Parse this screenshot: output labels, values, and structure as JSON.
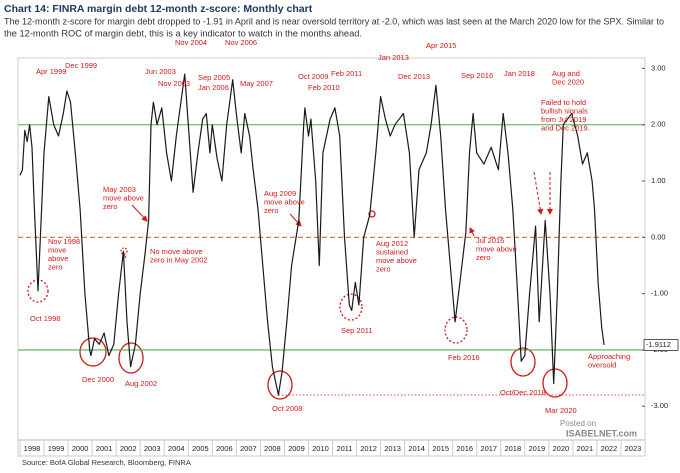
{
  "chart_data": {
    "type": "line",
    "title": "Chart 14: FINRA margin debt 12-month z-score: Monthly chart",
    "subtitle": [
      "The 12-month z-score for margin debt dropped to -1.91 in April and is near oversold territory at -2.0, which was last seen at the March 2020 low for the SPX. Similar to",
      "the 12-month ROC of margin debt, this is a key indicator to watch in the months ahead."
    ],
    "source": "Source: BofA Global Research, Bloomberg, FINRA",
    "watermark": [
      "Posted on",
      "ISABELNET.com"
    ],
    "color": "#1a1a1a",
    "x": [
      1998.0,
      1998.1,
      1998.2,
      1998.3,
      1998.4,
      1998.5,
      1998.6,
      1998.75,
      1998.9,
      1999.0,
      1999.2,
      1999.4,
      1999.6,
      1999.8,
      1999.95,
      2000.1,
      2000.3,
      2000.5,
      2000.7,
      2000.9,
      2000.95,
      2001.1,
      2001.3,
      2001.5,
      2001.7,
      2001.9,
      2002.1,
      2002.3,
      2002.45,
      2002.6,
      2002.8,
      2003.0,
      2003.2,
      2003.35,
      2003.45,
      2003.55,
      2003.7,
      2003.9,
      2004.1,
      2004.3,
      2004.5,
      2004.85,
      2005.0,
      2005.2,
      2005.4,
      2005.6,
      2005.75,
      2005.9,
      2006.0,
      2006.2,
      2006.4,
      2006.6,
      2006.85,
      2007.0,
      2007.2,
      2007.35,
      2007.55,
      2007.7,
      2007.9,
      2008.1,
      2008.3,
      2008.5,
      2008.75,
      2008.9,
      2009.1,
      2009.3,
      2009.6,
      2009.8,
      2009.85,
      2010.0,
      2010.1,
      2010.3,
      2010.45,
      2010.6,
      2010.9,
      2011.1,
      2011.3,
      2011.5,
      2011.7,
      2011.8,
      2011.95,
      2012.1,
      2012.3,
      2012.55,
      2012.8,
      2013.0,
      2013.2,
      2013.4,
      2013.6,
      2013.95,
      2014.2,
      2014.4,
      2014.6,
      2014.9,
      2015.1,
      2015.3,
      2015.5,
      2015.7,
      2015.9,
      2016.1,
      2016.3,
      2016.55,
      2016.7,
      2016.85,
      2017.0,
      2017.3,
      2017.6,
      2017.9,
      2018.1,
      2018.3,
      2018.5,
      2018.7,
      2018.85,
      2019.0,
      2019.2,
      2019.45,
      2019.6,
      2019.85,
      2020.05,
      2020.2,
      2020.35,
      2020.5,
      2020.6,
      2020.95,
      2021.2,
      2021.4,
      2021.6,
      2021.8,
      2021.9,
      2022.05,
      2022.2,
      2022.3
    ],
    "values": [
      1.1,
      1.2,
      1.9,
      1.7,
      2.0,
      1.6,
      0.5,
      -0.95,
      0.5,
      1.5,
      2.5,
      2.0,
      1.8,
      2.2,
      2.6,
      2.4,
      1.5,
      0.5,
      -1.0,
      -2.0,
      -2.1,
      -1.8,
      -1.9,
      -1.7,
      -2.1,
      -1.9,
      -1.0,
      -0.25,
      -1.5,
      -2.3,
      -1.9,
      -1.0,
      -0.3,
      0.3,
      2.0,
      2.4,
      2.0,
      2.3,
      1.5,
      1.0,
      1.8,
      2.9,
      2.0,
      0.8,
      1.5,
      2.1,
      2.2,
      1.5,
      2.0,
      1.4,
      1.0,
      2.0,
      2.8,
      2.2,
      1.5,
      2.2,
      1.8,
      1.2,
      0.5,
      -0.5,
      -1.5,
      -2.3,
      -2.8,
      -2.4,
      -1.5,
      -0.5,
      0.3,
      2.0,
      2.3,
      1.8,
      2.1,
      1.0,
      -0.5,
      1.5,
      2.1,
      2.3,
      1.8,
      0.0,
      -1.2,
      -1.3,
      -0.8,
      -1.2,
      0.0,
      0.4,
      1.5,
      2.5,
      2.1,
      1.8,
      2.0,
      2.2,
      1.5,
      0.0,
      1.2,
      1.5,
      2.0,
      2.7,
      1.8,
      0.5,
      -0.5,
      -1.5,
      -0.8,
      0.1,
      1.5,
      2.2,
      1.5,
      1.3,
      1.6,
      1.2,
      2.2,
      1.5,
      0.5,
      -1.0,
      -2.2,
      -2.1,
      -1.0,
      0.2,
      -1.5,
      0.3,
      -1.0,
      -2.6,
      -1.0,
      1.0,
      2.0,
      2.2,
      1.8,
      1.3,
      1.5,
      1.0,
      0.5,
      -0.8,
      -1.6,
      -1.9112
    ],
    "end_label": "-1.9112",
    "xlim": [
      1998,
      2024
    ],
    "xticks": [
      1998,
      1999,
      2000,
      2001,
      2002,
      2003,
      2004,
      2005,
      2006,
      2007,
      2008,
      2009,
      2010,
      2011,
      2012,
      2013,
      2014,
      2015,
      2016,
      2017,
      2018,
      2019,
      2020,
      2021,
      2022,
      2023
    ],
    "ylim": [
      -3.6,
      3.15
    ],
    "yticks": [
      {
        "value": 3,
        "label": "3.00"
      },
      {
        "value": 2,
        "label": "2.00"
      },
      {
        "value": 1,
        "label": "1.00"
      },
      {
        "value": 0,
        "label": "0.00"
      },
      {
        "value": -1,
        "label": "-1.00"
      },
      {
        "value": -2,
        "label": "-2.00"
      },
      {
        "value": -3,
        "label": "-3.00"
      }
    ],
    "hlines": [
      {
        "value": 2,
        "color": "#4caf50",
        "style": "solid"
      },
      {
        "value": -2,
        "color": "#4caf50",
        "style": "solid"
      },
      {
        "value": 0,
        "color": "#e06040",
        "style": "dashed"
      },
      {
        "value": -2.8,
        "from": 2008.75,
        "color": "#e06040",
        "style": "dotted"
      }
    ],
    "annotation_color": "#d01818",
    "annotations": [
      {
        "lines": [
          "Apr 1999"
        ]
      },
      {
        "lines": [
          "Dec 1999"
        ]
      },
      {
        "lines": [
          "Jun 2003"
        ]
      },
      {
        "lines": [
          "Nov 2003"
        ]
      },
      {
        "lines": [
          "Nov 2004"
        ]
      },
      {
        "lines": [
          "Sep 2005"
        ]
      },
      {
        "lines": [
          "Jan 2006"
        ]
      },
      {
        "lines": [
          "Nov 2006"
        ]
      },
      {
        "lines": [
          "May 2007"
        ]
      },
      {
        "lines": [
          "Oct 2009"
        ]
      },
      {
        "lines": [
          "Feb 2010"
        ]
      },
      {
        "lines": [
          "Feb 2011"
        ]
      },
      {
        "lines": [
          "Jan 2013"
        ]
      },
      {
        "lines": [
          "Dec 2013"
        ]
      },
      {
        "lines": [
          "Apr 2015"
        ]
      },
      {
        "lines": [
          "Sep 2016"
        ]
      },
      {
        "lines": [
          "Jan 2018"
        ]
      },
      {
        "lines": [
          "Aug and",
          "Dec 2020"
        ]
      },
      {
        "lines": [
          "Failed to hold",
          "bullish signals",
          "from Jul 2019",
          "and Dec 2019."
        ]
      },
      {
        "lines": [
          "Nov 1998",
          "move",
          "above",
          "zero"
        ]
      },
      {
        "lines": [
          "Oct 1998"
        ]
      },
      {
        "lines": [
          "May 2003",
          "move above",
          "zero"
        ]
      },
      {
        "lines": [
          "No move above",
          "zero in May 2002"
        ]
      },
      {
        "lines": [
          "Dec 2000"
        ]
      },
      {
        "lines": [
          "Aug 2002"
        ]
      },
      {
        "lines": [
          "Aug 2009",
          "move above",
          "zero"
        ]
      },
      {
        "lines": [
          "Oct 2008"
        ]
      },
      {
        "lines": [
          "Aug 2012",
          "sustained",
          "move above",
          "zero"
        ]
      },
      {
        "lines": [
          "Sep 2011"
        ]
      },
      {
        "lines": [
          "Jul 2016",
          "move above",
          "zero"
        ]
      },
      {
        "lines": [
          "Feb 2016"
        ]
      },
      {
        "lines": [
          "Oct/Dec 2018"
        ]
      },
      {
        "lines": [
          "Mar 2020"
        ]
      },
      {
        "lines": [
          "Approaching",
          "oversold"
        ]
      }
    ]
  }
}
